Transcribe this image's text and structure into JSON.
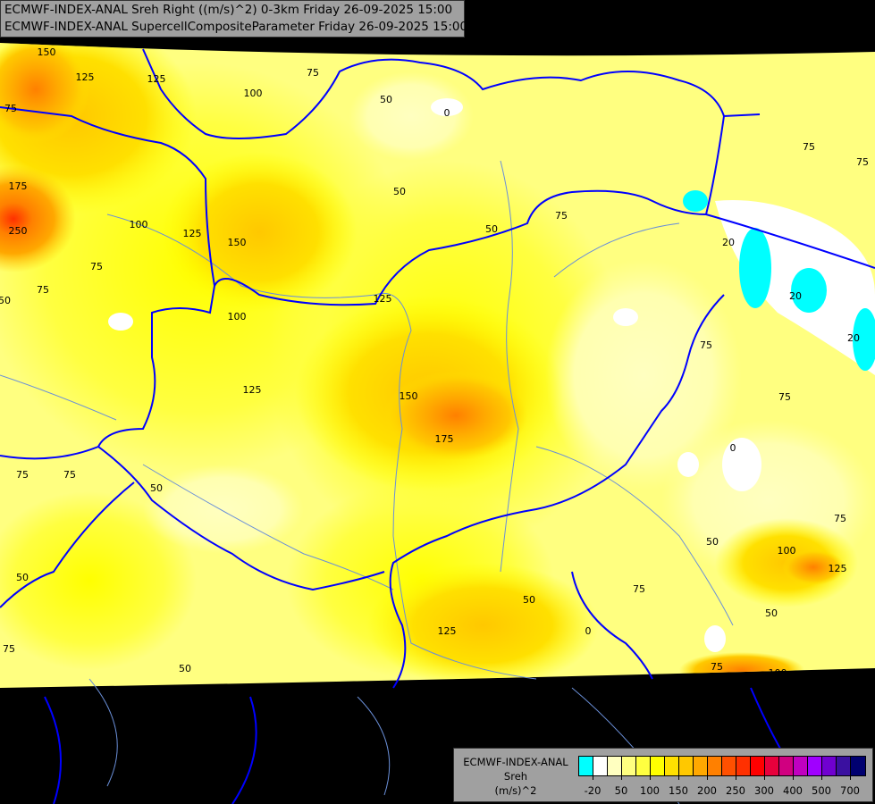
{
  "header": {
    "line1": "ECMWF-INDEX-ANAL Sreh Right ((m/s)^2) 0-3km Friday 26-09-2025 15:00",
    "line2": "ECMWF-INDEX-ANAL SupercellCompositeParameter Friday 26-09-2025 15:00"
  },
  "legend": {
    "model": "ECMWF-INDEX-ANAL",
    "variable": "Sreh",
    "unit": "(m/s)^2",
    "colors": [
      "#00ffff",
      "#ffffff",
      "#ffffc0",
      "#ffff80",
      "#ffff40",
      "#ffff00",
      "#ffe000",
      "#ffc800",
      "#ffa800",
      "#ff8000",
      "#ff5000",
      "#ff3000",
      "#ff0000",
      "#e8003c",
      "#d00080",
      "#c000c0",
      "#a000ff",
      "#7000d0",
      "#3a10a0",
      "#000070"
    ],
    "tick_labels": [
      "-20",
      "50",
      "100",
      "150",
      "200",
      "250",
      "300",
      "400",
      "500",
      "700"
    ]
  },
  "map": {
    "colors": {
      "background": "#ffff80",
      "border": "#0000ff",
      "river": "#6a8fd8",
      "nodata": "#000000"
    },
    "contour_labels": [
      "150",
      "125",
      "125",
      "75",
      "100",
      "75",
      "50",
      "0",
      "175",
      "250",
      "100",
      "125",
      "150",
      "75",
      "75",
      "100",
      "125",
      "50",
      "75",
      "50",
      "75",
      "125",
      "150",
      "175",
      "75",
      "75",
      "50",
      "20",
      "20",
      "20",
      "75",
      "75",
      "0",
      "75",
      "50",
      "100",
      "125",
      "75",
      "50",
      "125",
      "50",
      "75",
      "0",
      "75",
      "100",
      "50",
      "75",
      "50",
      "50"
    ]
  }
}
